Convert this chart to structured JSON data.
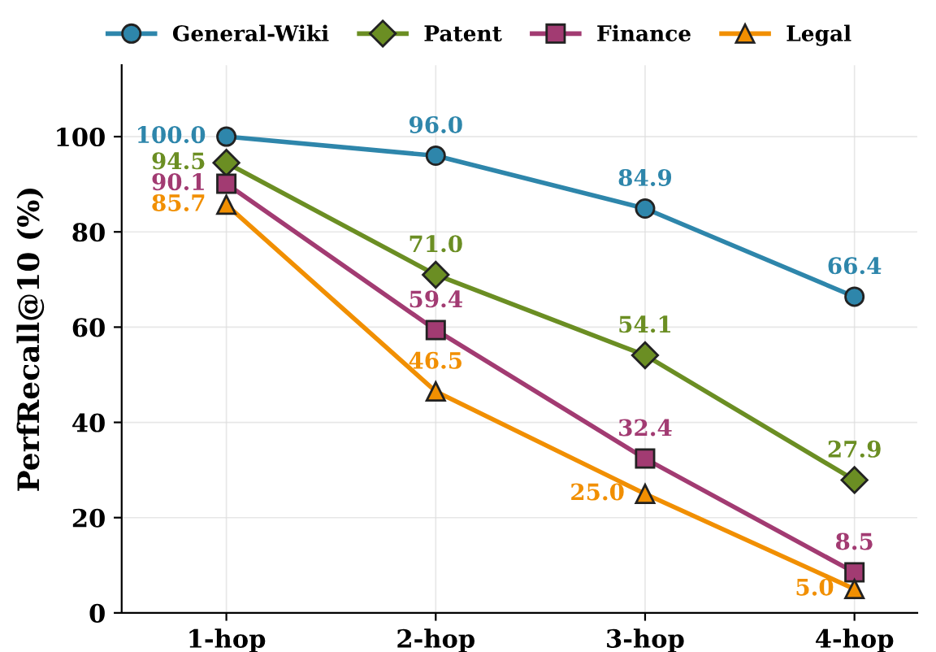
{
  "chart_data": {
    "type": "line",
    "ylabel": "PerfRecall@10 (%)",
    "categories": [
      "1-hop",
      "2-hop",
      "3-hop",
      "4-hop"
    ],
    "series": [
      {
        "name": "General-Wiki",
        "color": "#2e86ab",
        "marker": "circle",
        "values": [
          100.0,
          96.0,
          84.9,
          66.4
        ],
        "value_labels": [
          "100.0",
          "96.0",
          "84.9",
          "66.4"
        ]
      },
      {
        "name": "Patent",
        "color": "#6b8e23",
        "marker": "diamond",
        "values": [
          94.5,
          71.0,
          54.1,
          27.9
        ],
        "value_labels": [
          "94.5",
          "71.0",
          "54.1",
          "27.9"
        ]
      },
      {
        "name": "Finance",
        "color": "#a23b72",
        "marker": "square",
        "values": [
          90.1,
          59.4,
          32.4,
          8.5
        ],
        "value_labels": [
          "90.1",
          "59.4",
          "32.4",
          "8.5"
        ]
      },
      {
        "name": "Legal",
        "color": "#f18f01",
        "marker": "triangle",
        "values": [
          85.7,
          46.5,
          25.0,
          5.0
        ],
        "value_labels": [
          "85.7",
          "46.5",
          "25.0",
          "5.0"
        ]
      }
    ],
    "ylim": [
      0,
      115
    ],
    "yticks": [
      0,
      20,
      40,
      60,
      80,
      100
    ],
    "grid": true,
    "legend": "top",
    "line_style": "solid"
  }
}
